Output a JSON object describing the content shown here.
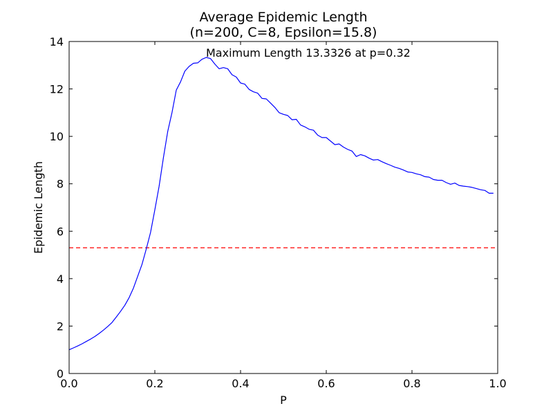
{
  "chart_data": {
    "type": "line",
    "title": "Average Epidemic Length",
    "subtitle": "(n=200, C=8, Epsilon=15.8)",
    "xlabel": "P",
    "ylabel": "Epidemic Length",
    "xlim": [
      0,
      1
    ],
    "ylim": [
      0,
      14
    ],
    "xticks": [
      "0.0",
      "0.2",
      "0.4",
      "0.6",
      "0.8",
      "1.0"
    ],
    "yticks": [
      "0",
      "2",
      "4",
      "6",
      "8",
      "10",
      "12",
      "14"
    ],
    "grid": false,
    "annotation": "Maximum Length 13.3326 at p=0.32",
    "reference_line": {
      "y": 5.3,
      "color": "#ff0000",
      "style": "dashed"
    },
    "series": [
      {
        "color": "#0000ff",
        "x": [
          0.0,
          0.01,
          0.02,
          0.03,
          0.04,
          0.05,
          0.06,
          0.07,
          0.08,
          0.09,
          0.1,
          0.11,
          0.12,
          0.13,
          0.14,
          0.15,
          0.16,
          0.17,
          0.18,
          0.19,
          0.2,
          0.21,
          0.22,
          0.23,
          0.24,
          0.25,
          0.26,
          0.27,
          0.28,
          0.29,
          0.3,
          0.31,
          0.32,
          0.33,
          0.34,
          0.35,
          0.36,
          0.37,
          0.38,
          0.39,
          0.4,
          0.41,
          0.42,
          0.43,
          0.44,
          0.45,
          0.46,
          0.47,
          0.48,
          0.49,
          0.5,
          0.51,
          0.52,
          0.53,
          0.54,
          0.55,
          0.56,
          0.57,
          0.58,
          0.59,
          0.6,
          0.61,
          0.62,
          0.63,
          0.64,
          0.65,
          0.66,
          0.67,
          0.68,
          0.69,
          0.7,
          0.71,
          0.72,
          0.73,
          0.74,
          0.75,
          0.76,
          0.77,
          0.78,
          0.79,
          0.8,
          0.81,
          0.82,
          0.83,
          0.84,
          0.85,
          0.86,
          0.87,
          0.88,
          0.89,
          0.9,
          0.91,
          0.92,
          0.93,
          0.94,
          0.95,
          0.96,
          0.97,
          0.98,
          0.99
        ],
        "y": [
          1.0,
          1.08,
          1.16,
          1.25,
          1.35,
          1.45,
          1.56,
          1.69,
          1.83,
          1.98,
          2.15,
          2.38,
          2.62,
          2.88,
          3.2,
          3.6,
          4.1,
          4.6,
          5.25,
          5.95,
          6.9,
          7.9,
          9.1,
          10.2,
          11.0,
          11.95,
          12.3,
          12.75,
          12.95,
          13.08,
          13.1,
          13.25,
          13.33,
          13.28,
          13.05,
          12.85,
          12.9,
          12.85,
          12.6,
          12.5,
          12.25,
          12.2,
          11.98,
          11.88,
          11.82,
          11.6,
          11.58,
          11.4,
          11.22,
          11.0,
          10.93,
          10.88,
          10.7,
          10.72,
          10.48,
          10.4,
          10.3,
          10.26,
          10.05,
          9.95,
          9.95,
          9.8,
          9.65,
          9.68,
          9.55,
          9.45,
          9.38,
          9.15,
          9.23,
          9.18,
          9.08,
          9.0,
          9.02,
          8.93,
          8.85,
          8.78,
          8.7,
          8.65,
          8.58,
          8.5,
          8.48,
          8.42,
          8.38,
          8.3,
          8.28,
          8.18,
          8.15,
          8.15,
          8.05,
          7.98,
          8.03,
          7.93,
          7.9,
          7.88,
          7.85,
          7.8,
          7.75,
          7.72,
          7.6,
          7.6
        ]
      }
    ]
  }
}
